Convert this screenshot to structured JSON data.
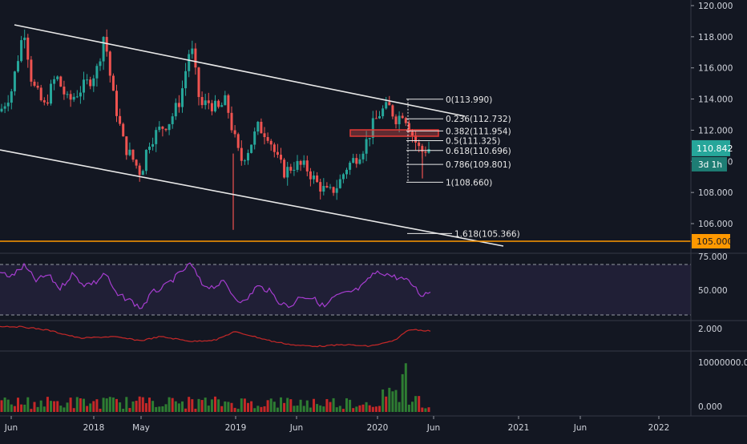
{
  "chart_data": {
    "type": "candlestick",
    "price_axis": {
      "ticks": [
        "120.000",
        "118.000",
        "116.000",
        "114.000",
        "112.000",
        "110.000",
        "108.000",
        "106.000"
      ],
      "ylim": [
        104.7,
        120.3
      ],
      "current_price_label": "110.842",
      "countdown_label": "3d 1h",
      "support_price_label": "105.000"
    },
    "time_axis": {
      "ticks": [
        "Jun",
        "2018",
        "May",
        "2019",
        "Jun",
        "2020",
        "Jun",
        "2021",
        "Jun",
        "2022"
      ]
    },
    "fibonacci": [
      {
        "label": "0(113.990)",
        "value": 113.99
      },
      {
        "label": "0.236(112.732)",
        "value": 112.732
      },
      {
        "label": "0.382(111.954)",
        "value": 111.954
      },
      {
        "label": "0.5(111.325)",
        "value": 111.325
      },
      {
        "label": "0.618(110.696)",
        "value": 110.696
      },
      {
        "label": "0.786(109.801)",
        "value": 109.801
      },
      {
        "label": "1(108.660)",
        "value": 108.66
      },
      {
        "label": "1.618(105.366)",
        "value": 105.366
      }
    ],
    "rsi_panel": {
      "ticks": [
        "75.000",
        "50.000"
      ],
      "upper_band": 70,
      "lower_band": 30
    },
    "indicator_panel": {
      "ticks": [
        "2.000"
      ]
    },
    "volume_panel": {
      "ticks": [
        "10000000.000",
        "0.000"
      ]
    },
    "colors": {
      "background": "#131722",
      "up": "#26a69a",
      "down": "#ef5350",
      "trendline": "#e8e8e8",
      "rsi": "#a63dd0",
      "indicator": "#c62828",
      "support": "#ff9800",
      "grid": "#2a2e39",
      "text": "#d1d4dc"
    }
  }
}
